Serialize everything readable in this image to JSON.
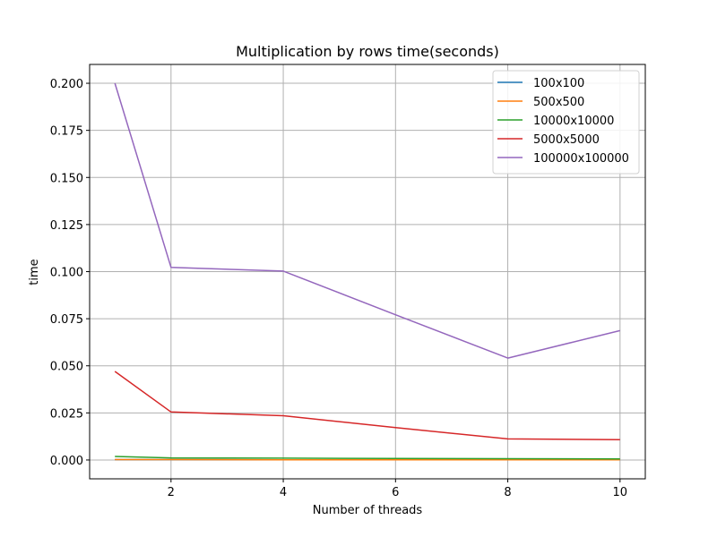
{
  "chart_data": {
    "type": "line",
    "title": "Multiplication by rows time(seconds)",
    "xlabel": "Number of threads",
    "ylabel": "time",
    "x": [
      1,
      2,
      4,
      6,
      8,
      10
    ],
    "xlim": [
      0.55,
      10.45
    ],
    "ylim": [
      -0.01,
      0.21
    ],
    "xticks": [
      "2",
      "4",
      "6",
      "8",
      "10"
    ],
    "yticks": [
      "0.000",
      "0.025",
      "0.050",
      "0.075",
      "0.100",
      "0.125",
      "0.150",
      "0.175",
      "0.200"
    ],
    "grid": true,
    "legend_position": "top-right",
    "series": [
      {
        "name": "100x100",
        "color": "#1f77b4",
        "values": [
          0.0002,
          0.0002,
          0.0001,
          0.0001,
          0.0001,
          0.0001
        ]
      },
      {
        "name": "500x500",
        "color": "#ff7f0e",
        "values": [
          0.0002,
          0.0002,
          0.0001,
          0.0001,
          0.0001,
          0.0001
        ]
      },
      {
        "name": "10000x10000",
        "color": "#2ca02c",
        "values": [
          0.0019,
          0.0011,
          0.001,
          0.0008,
          0.0007,
          0.0006
        ]
      },
      {
        "name": "5000x5000",
        "color": "#d62728",
        "values": [
          0.047,
          0.0255,
          0.0235,
          0.0172,
          0.0112,
          0.0108
        ]
      },
      {
        "name": "100000x100000",
        "color": "#9467bd",
        "values": [
          0.2,
          0.1023,
          0.1003,
          0.0771,
          0.0541,
          0.0687
        ]
      }
    ]
  }
}
